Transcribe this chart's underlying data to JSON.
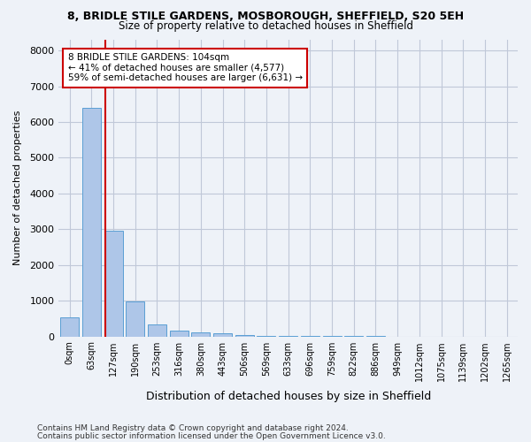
{
  "title1": "8, BRIDLE STILE GARDENS, MOSBOROUGH, SHEFFIELD, S20 5EH",
  "title2": "Size of property relative to detached houses in Sheffield",
  "xlabel": "Distribution of detached houses by size in Sheffield",
  "ylabel": "Number of detached properties",
  "footer1": "Contains HM Land Registry data © Crown copyright and database right 2024.",
  "footer2": "Contains public sector information licensed under the Open Government Licence v3.0.",
  "bin_labels": [
    "0sqm",
    "63sqm",
    "127sqm",
    "190sqm",
    "253sqm",
    "316sqm",
    "380sqm",
    "443sqm",
    "506sqm",
    "569sqm",
    "633sqm",
    "696sqm",
    "759sqm",
    "822sqm",
    "886sqm",
    "949sqm",
    "1012sqm",
    "1075sqm",
    "1139sqm",
    "1202sqm",
    "1265sqm"
  ],
  "bar_values": [
    530,
    6400,
    2950,
    970,
    330,
    155,
    105,
    75,
    30,
    10,
    5,
    3,
    2,
    1,
    1,
    0,
    0,
    0,
    0,
    0,
    0
  ],
  "bar_color": "#aec6e8",
  "bar_edge_color": "#5a9fd4",
  "bg_color": "#eef2f8",
  "grid_color": "#c0c8d8",
  "red_line_x": 1.65,
  "annotation_text": "8 BRIDLE STILE GARDENS: 104sqm\n← 41% of detached houses are smaller (4,577)\n59% of semi-detached houses are larger (6,631) →",
  "annotation_box_color": "#ffffff",
  "annotation_border_color": "#cc0000",
  "red_line_color": "#cc0000",
  "ylim": [
    0,
    8300
  ],
  "yticks": [
    0,
    1000,
    2000,
    3000,
    4000,
    5000,
    6000,
    7000,
    8000
  ]
}
